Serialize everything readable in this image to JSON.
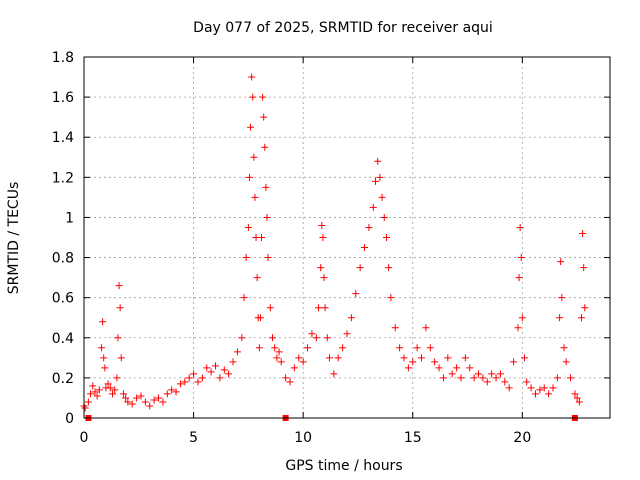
{
  "chart_data": {
    "type": "scatter",
    "title": "Day 077 of 2025, SRMTID for receiver aqui",
    "xlabel": "GPS time / hours",
    "ylabel": "SRMTID / TECUs",
    "xlim": [
      0,
      24
    ],
    "ylim": [
      0,
      1.8
    ],
    "grid": true,
    "x_ticks": [
      {
        "value": 0,
        "label": "0"
      },
      {
        "value": 5,
        "label": "5"
      },
      {
        "value": 10,
        "label": "10"
      },
      {
        "value": 15,
        "label": "15"
      },
      {
        "value": 20,
        "label": "20"
      }
    ],
    "y_ticks": [
      {
        "value": 0,
        "label": "0"
      },
      {
        "value": 0.2,
        "label": "0.2"
      },
      {
        "value": 0.4,
        "label": "0.4"
      },
      {
        "value": 0.6,
        "label": "0.6"
      },
      {
        "value": 0.8,
        "label": "0.8"
      },
      {
        "value": 1.0,
        "label": "1"
      },
      {
        "value": 1.2,
        "label": "1.2"
      },
      {
        "value": 1.4,
        "label": "1.4"
      },
      {
        "value": 1.6,
        "label": "1.6"
      },
      {
        "value": 1.8,
        "label": "1.8"
      }
    ],
    "marker": "plus",
    "series_color": "#ff0000",
    "grid_color": "#a0a0a0",
    "series": [
      {
        "name": "SRMTID",
        "points": [
          [
            0.0,
            0.06
          ],
          [
            0.05,
            0.05
          ],
          [
            0.2,
            0.08
          ],
          [
            0.3,
            0.12
          ],
          [
            0.4,
            0.16
          ],
          [
            0.5,
            0.13
          ],
          [
            0.6,
            0.11
          ],
          [
            0.7,
            0.14
          ],
          [
            0.8,
            0.35
          ],
          [
            0.85,
            0.48
          ],
          [
            0.9,
            0.3
          ],
          [
            0.95,
            0.25
          ],
          [
            1.0,
            0.15
          ],
          [
            1.1,
            0.17
          ],
          [
            1.2,
            0.15
          ],
          [
            1.3,
            0.12
          ],
          [
            1.4,
            0.14
          ],
          [
            1.5,
            0.2
          ],
          [
            1.55,
            0.4
          ],
          [
            1.6,
            0.66
          ],
          [
            1.65,
            0.55
          ],
          [
            1.7,
            0.3
          ],
          [
            1.8,
            0.12
          ],
          [
            1.9,
            0.1
          ],
          [
            2.0,
            0.08
          ],
          [
            2.2,
            0.07
          ],
          [
            2.4,
            0.1
          ],
          [
            2.6,
            0.11
          ],
          [
            2.8,
            0.08
          ],
          [
            3.0,
            0.06
          ],
          [
            3.2,
            0.09
          ],
          [
            3.4,
            0.1
          ],
          [
            3.6,
            0.08
          ],
          [
            3.8,
            0.12
          ],
          [
            4.0,
            0.14
          ],
          [
            4.2,
            0.13
          ],
          [
            4.4,
            0.17
          ],
          [
            4.6,
            0.18
          ],
          [
            4.8,
            0.2
          ],
          [
            5.0,
            0.22
          ],
          [
            5.2,
            0.18
          ],
          [
            5.4,
            0.2
          ],
          [
            5.6,
            0.25
          ],
          [
            5.8,
            0.23
          ],
          [
            6.0,
            0.26
          ],
          [
            6.2,
            0.2
          ],
          [
            6.4,
            0.24
          ],
          [
            6.6,
            0.22
          ],
          [
            6.8,
            0.28
          ],
          [
            7.0,
            0.33
          ],
          [
            7.2,
            0.4
          ],
          [
            7.3,
            0.6
          ],
          [
            7.4,
            0.8
          ],
          [
            7.5,
            0.95
          ],
          [
            7.55,
            1.2
          ],
          [
            7.6,
            1.45
          ],
          [
            7.65,
            1.7
          ],
          [
            7.7,
            1.6
          ],
          [
            7.75,
            1.3
          ],
          [
            7.8,
            1.1
          ],
          [
            7.85,
            0.9
          ],
          [
            7.9,
            0.7
          ],
          [
            7.95,
            0.5
          ],
          [
            8.0,
            0.35
          ],
          [
            8.05,
            0.5
          ],
          [
            8.1,
            0.9
          ],
          [
            8.15,
            1.6
          ],
          [
            8.2,
            1.5
          ],
          [
            8.25,
            1.35
          ],
          [
            8.3,
            1.15
          ],
          [
            8.35,
            1.0
          ],
          [
            8.4,
            0.8
          ],
          [
            8.5,
            0.55
          ],
          [
            8.6,
            0.4
          ],
          [
            8.7,
            0.35
          ],
          [
            8.8,
            0.3
          ],
          [
            8.9,
            0.33
          ],
          [
            9.0,
            0.28
          ],
          [
            9.2,
            0.2
          ],
          [
            9.4,
            0.18
          ],
          [
            9.6,
            0.25
          ],
          [
            9.8,
            0.3
          ],
          [
            10.0,
            0.28
          ],
          [
            10.2,
            0.35
          ],
          [
            10.4,
            0.42
          ],
          [
            10.6,
            0.4
          ],
          [
            10.7,
            0.55
          ],
          [
            10.8,
            0.75
          ],
          [
            10.85,
            0.96
          ],
          [
            10.9,
            0.9
          ],
          [
            10.95,
            0.7
          ],
          [
            11.0,
            0.55
          ],
          [
            11.1,
            0.4
          ],
          [
            11.2,
            0.3
          ],
          [
            11.4,
            0.22
          ],
          [
            11.6,
            0.3
          ],
          [
            11.8,
            0.35
          ],
          [
            12.0,
            0.42
          ],
          [
            12.2,
            0.5
          ],
          [
            12.4,
            0.62
          ],
          [
            12.6,
            0.75
          ],
          [
            12.8,
            0.85
          ],
          [
            13.0,
            0.95
          ],
          [
            13.2,
            1.05
          ],
          [
            13.3,
            1.18
          ],
          [
            13.4,
            1.28
          ],
          [
            13.5,
            1.2
          ],
          [
            13.6,
            1.1
          ],
          [
            13.7,
            1.0
          ],
          [
            13.8,
            0.9
          ],
          [
            13.9,
            0.75
          ],
          [
            14.0,
            0.6
          ],
          [
            14.2,
            0.45
          ],
          [
            14.4,
            0.35
          ],
          [
            14.6,
            0.3
          ],
          [
            14.8,
            0.25
          ],
          [
            15.0,
            0.28
          ],
          [
            15.2,
            0.35
          ],
          [
            15.4,
            0.3
          ],
          [
            15.6,
            0.45
          ],
          [
            15.8,
            0.35
          ],
          [
            16.0,
            0.28
          ],
          [
            16.2,
            0.25
          ],
          [
            16.4,
            0.2
          ],
          [
            16.6,
            0.3
          ],
          [
            16.8,
            0.22
          ],
          [
            17.0,
            0.25
          ],
          [
            17.2,
            0.2
          ],
          [
            17.4,
            0.3
          ],
          [
            17.6,
            0.25
          ],
          [
            17.8,
            0.2
          ],
          [
            18.0,
            0.22
          ],
          [
            18.2,
            0.2
          ],
          [
            18.4,
            0.18
          ],
          [
            18.6,
            0.22
          ],
          [
            18.8,
            0.2
          ],
          [
            19.0,
            0.22
          ],
          [
            19.2,
            0.18
          ],
          [
            19.4,
            0.15
          ],
          [
            19.6,
            0.28
          ],
          [
            19.8,
            0.45
          ],
          [
            19.85,
            0.7
          ],
          [
            19.9,
            0.95
          ],
          [
            19.95,
            0.8
          ],
          [
            20.0,
            0.5
          ],
          [
            20.1,
            0.3
          ],
          [
            20.2,
            0.18
          ],
          [
            20.4,
            0.15
          ],
          [
            20.6,
            0.12
          ],
          [
            20.8,
            0.14
          ],
          [
            21.0,
            0.15
          ],
          [
            21.2,
            0.12
          ],
          [
            21.4,
            0.15
          ],
          [
            21.6,
            0.2
          ],
          [
            21.7,
            0.5
          ],
          [
            21.75,
            0.78
          ],
          [
            21.8,
            0.6
          ],
          [
            21.9,
            0.35
          ],
          [
            22.0,
            0.28
          ],
          [
            22.2,
            0.2
          ],
          [
            22.4,
            0.12
          ],
          [
            22.5,
            0.1
          ],
          [
            22.6,
            0.08
          ],
          [
            22.7,
            0.5
          ],
          [
            22.75,
            0.92
          ],
          [
            22.8,
            0.75
          ],
          [
            22.85,
            0.55
          ]
        ]
      }
    ],
    "baseline_markers": [
      0.2,
      9.2,
      22.4
    ]
  }
}
